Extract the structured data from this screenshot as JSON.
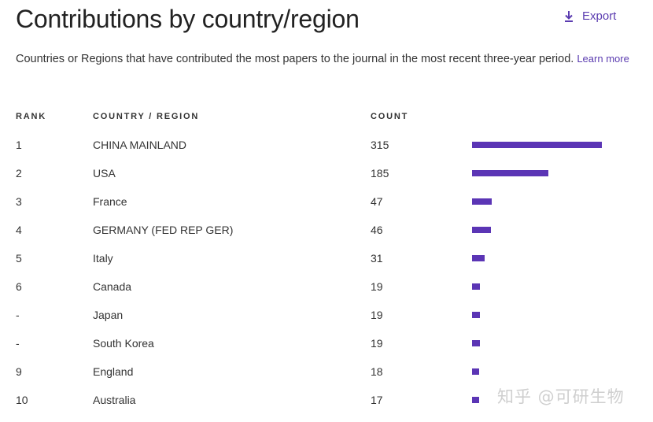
{
  "header": {
    "title": "Contributions by country/region",
    "export_label": "Export",
    "export_icon": "download-icon"
  },
  "description": {
    "text": "Countries or Regions that have contributed the most papers to the journal in the most recent three-year period.",
    "learn_more": "Learn more"
  },
  "table": {
    "columns": {
      "rank": "RANK",
      "country": "COUNTRY / REGION",
      "count": "COUNT"
    },
    "max_count": 315,
    "bar_color": "#5b35b5",
    "rows": [
      {
        "rank": "1",
        "country": "CHINA MAINLAND",
        "count": "315",
        "value": 315
      },
      {
        "rank": "2",
        "country": "USA",
        "count": "185",
        "value": 185
      },
      {
        "rank": "3",
        "country": "France",
        "count": "47",
        "value": 47
      },
      {
        "rank": "4",
        "country": "GERMANY (FED REP GER)",
        "count": "46",
        "value": 46
      },
      {
        "rank": "5",
        "country": "Italy",
        "count": "31",
        "value": 31
      },
      {
        "rank": "6",
        "country": "Canada",
        "count": "19",
        "value": 19
      },
      {
        "rank": "-",
        "country": "Japan",
        "count": "19",
        "value": 19
      },
      {
        "rank": "-",
        "country": "South Korea",
        "count": "19",
        "value": 19
      },
      {
        "rank": "9",
        "country": "England",
        "count": "18",
        "value": 18
      },
      {
        "rank": "10",
        "country": "Australia",
        "count": "17",
        "value": 17
      }
    ]
  },
  "watermark": "知乎 @可研生物"
}
